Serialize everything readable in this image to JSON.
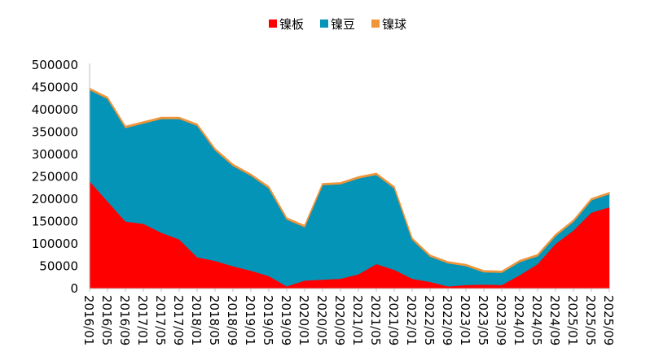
{
  "chart_data": {
    "type": "area",
    "stacked": true,
    "title": "",
    "xlabel": "",
    "ylabel": "",
    "ylim": [
      0,
      500000
    ],
    "y_ticks": [
      "500000",
      "450000",
      "400000",
      "350000",
      "300000",
      "250000",
      "200000",
      "150000",
      "100000",
      "50000",
      "0"
    ],
    "x_tick_labels": [
      "2016/01",
      "2016/05",
      "2016/09",
      "2017/01",
      "2017/05",
      "2017/09",
      "2018/01",
      "2018/05",
      "2018/09",
      "2019/01",
      "2019/05",
      "2019/09",
      "2020/01",
      "2020/05",
      "2020/09",
      "2021/01",
      "2021/05",
      "2021/09",
      "2022/01",
      "2022/05",
      "2022/09",
      "2023/01",
      "2023/05",
      "2023/09",
      "2024/01",
      "2024/05",
      "2024/09",
      "2025/01",
      "2025/05",
      "2025/09"
    ],
    "legend_position": "top",
    "grid": false,
    "x": [
      "2016/01",
      "2016/05",
      "2016/09",
      "2017/01",
      "2017/05",
      "2017/09",
      "2018/01",
      "2018/05",
      "2018/09",
      "2019/01",
      "2019/05",
      "2019/09",
      "2020/01",
      "2020/05",
      "2020/09",
      "2021/01",
      "2021/05",
      "2021/09",
      "2022/01",
      "2022/05",
      "2022/09",
      "2023/01",
      "2023/05",
      "2023/09",
      "2024/01",
      "2024/05",
      "2024/09",
      "2025/01",
      "2025/05",
      "2025/09"
    ],
    "series": [
      {
        "name": "镍板",
        "color": "#ff0000",
        "values": [
          240000,
          195000,
          150000,
          145000,
          125000,
          110000,
          70000,
          62000,
          50000,
          40000,
          28000,
          5000,
          18000,
          20000,
          22000,
          32000,
          55000,
          42000,
          22000,
          15000,
          5000,
          8000,
          9000,
          8000,
          30000,
          55000,
          100000,
          130000,
          170000,
          182000
        ]
      },
      {
        "name": "镍豆",
        "color": "#0494b8",
        "values": [
          205000,
          230000,
          210000,
          225000,
          255000,
          270000,
          295000,
          248000,
          225000,
          213000,
          197000,
          150000,
          120000,
          212000,
          212000,
          215000,
          200000,
          183000,
          88000,
          57000,
          52000,
          43000,
          28000,
          28000,
          30000,
          18000,
          18000,
          20000,
          28000,
          30000
        ]
      },
      {
        "name": "镍球",
        "color": "#f0953a",
        "values": [
          3000,
          3000,
          3000,
          3000,
          3000,
          3000,
          3000,
          3000,
          3000,
          3000,
          3000,
          3000,
          3000,
          3000,
          3000,
          3000,
          3000,
          3000,
          3000,
          3000,
          3000,
          3000,
          3000,
          3000,
          3000,
          3000,
          3000,
          3000,
          3000,
          3000
        ]
      }
    ]
  }
}
